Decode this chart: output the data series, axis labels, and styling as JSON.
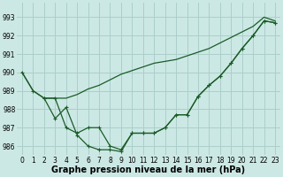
{
  "background_color": "#cce8e4",
  "grid_color": "#aacfcb",
  "line_color": "#1a5c28",
  "xlabel": "Graphe pression niveau de la mer (hPa)",
  "xlabel_fontsize": 7,
  "ylim": [
    985.5,
    993.8
  ],
  "xlim": [
    -0.5,
    23.5
  ],
  "yticks": [
    986,
    987,
    988,
    989,
    990,
    991,
    992,
    993
  ],
  "xticks": [
    0,
    1,
    2,
    3,
    4,
    5,
    6,
    7,
    8,
    9,
    10,
    11,
    12,
    13,
    14,
    15,
    16,
    17,
    18,
    19,
    20,
    21,
    22,
    23
  ],
  "series_smooth": {
    "x": [
      0,
      1,
      2,
      3,
      4,
      5,
      6,
      7,
      8,
      9,
      10,
      11,
      12,
      13,
      14,
      15,
      16,
      17,
      18,
      19,
      20,
      21,
      22,
      23
    ],
    "y": [
      990.0,
      989.0,
      988.6,
      988.6,
      988.6,
      988.8,
      989.1,
      989.3,
      989.6,
      989.9,
      990.1,
      990.3,
      990.5,
      990.6,
      990.7,
      990.9,
      991.1,
      991.3,
      991.6,
      991.9,
      992.2,
      992.5,
      993.0,
      992.8
    ]
  },
  "series_deep": {
    "x": [
      0,
      1,
      2,
      3,
      4,
      5,
      6,
      7,
      8,
      9,
      10,
      11,
      12,
      13,
      14,
      15,
      16,
      17,
      18,
      19,
      20,
      21,
      22,
      23
    ],
    "y": [
      990.0,
      989.0,
      988.6,
      988.6,
      987.0,
      986.7,
      987.0,
      987.0,
      986.0,
      985.8,
      986.7,
      986.7,
      986.7,
      987.0,
      987.7,
      987.7,
      988.7,
      989.3,
      989.8,
      990.5,
      991.3,
      992.0,
      992.8,
      992.7
    ]
  },
  "series_cross": {
    "x": [
      2,
      3,
      4,
      5,
      6,
      7,
      8,
      9,
      10,
      11,
      12,
      13,
      14,
      15,
      16,
      17,
      18,
      19,
      20,
      21,
      22,
      23
    ],
    "y": [
      988.6,
      987.5,
      988.1,
      986.6,
      986.0,
      985.8,
      985.8,
      985.7,
      986.7,
      986.7,
      986.7,
      987.0,
      987.7,
      987.7,
      988.7,
      989.3,
      989.8,
      990.5,
      991.3,
      992.0,
      992.8,
      992.7
    ]
  }
}
